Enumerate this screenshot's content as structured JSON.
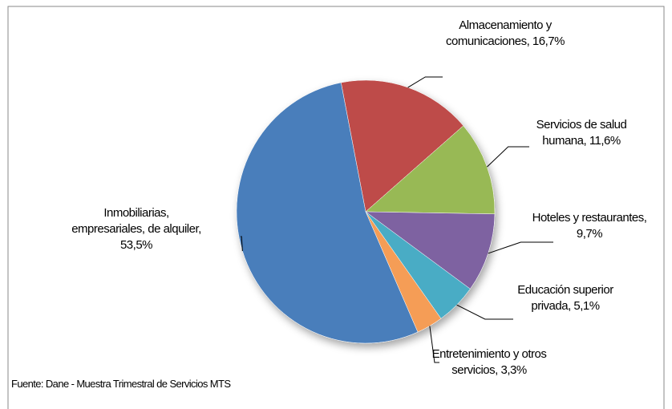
{
  "chart_data": {
    "type": "pie",
    "categories": [
      "Almacenamiento y comunicaciones,",
      "Servicios de salud humana,",
      "Hoteles y restaurantes,",
      "Educación superior privada,",
      "Entretenimiento y otros servicios,",
      "Inmobiliarias, empresariales, de alquiler,"
    ],
    "values": [
      16.7,
      11.6,
      9.7,
      5.1,
      3.3,
      53.5
    ],
    "value_labels": [
      "16,7%",
      "11,6%",
      "9,7%",
      "5,1%",
      "3,3%",
      "53,5%"
    ],
    "colors": [
      "#be4b48",
      "#98b954",
      "#7e62a1",
      "#4aacc5",
      "#f59d56",
      "#4a7ebb"
    ],
    "source": "Fuente: Dane - Muestra Trimestral de Servicios MTS"
  }
}
